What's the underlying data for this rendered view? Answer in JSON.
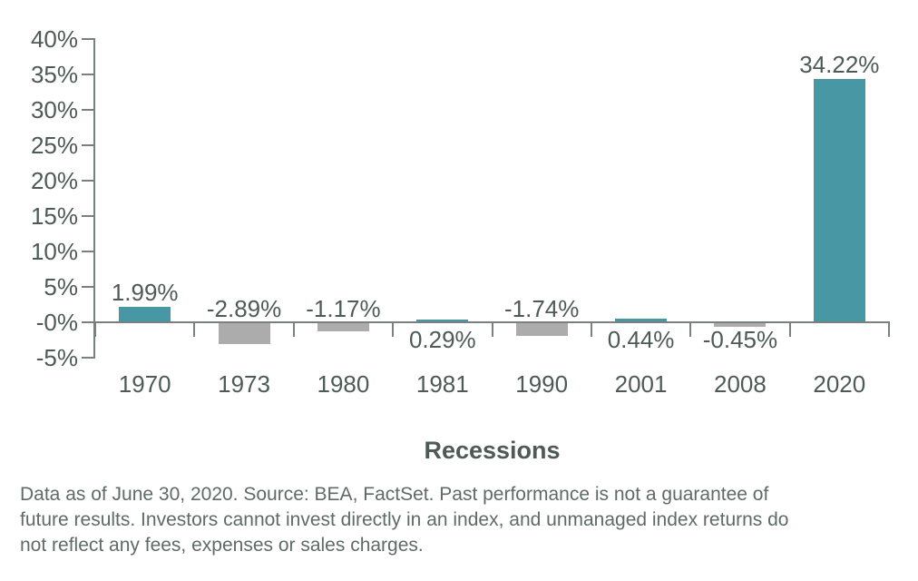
{
  "chart_data": {
    "type": "bar",
    "categories": [
      "1970",
      "1973",
      "1980",
      "1981",
      "1990",
      "2001",
      "2008",
      "2020"
    ],
    "values": [
      1.99,
      -2.89,
      -1.17,
      0.29,
      -1.74,
      0.44,
      -0.45,
      34.22
    ],
    "value_labels": [
      "1.99%",
      "-2.89%",
      "-1.17%",
      "0.29%",
      "-1.74%",
      "0.44%",
      "-0.45%",
      "34.22%"
    ],
    "value_label_placements": [
      "above-bar",
      "above-axis",
      "above-axis",
      "below-axis",
      "above-axis",
      "below-axis",
      "below-axis",
      "above-bar"
    ],
    "title": "",
    "xlabel": "Recessions",
    "ylabel": "",
    "ylim": [
      -5,
      40
    ],
    "ytick_step": 5,
    "ytick_labels": [
      "40%",
      "35%",
      "30%",
      "25%",
      "20%",
      "15%",
      "10%",
      "5%",
      "-0%",
      "-5%"
    ],
    "grid": false,
    "legend": false,
    "positive_color": "#4897A5",
    "negative_color": "#ACACAC",
    "axis_color": "#7A807D",
    "text_color": "#4D5A55"
  },
  "footnote": {
    "lines": [
      "Data as of June 30, 2020. Source: BEA, FactSet. Past performance is not a guarantee of",
      "future results. Investors cannot invest directly in an index, and unmanaged index returns do",
      "not reflect any fees, expenses or sales charges."
    ]
  }
}
